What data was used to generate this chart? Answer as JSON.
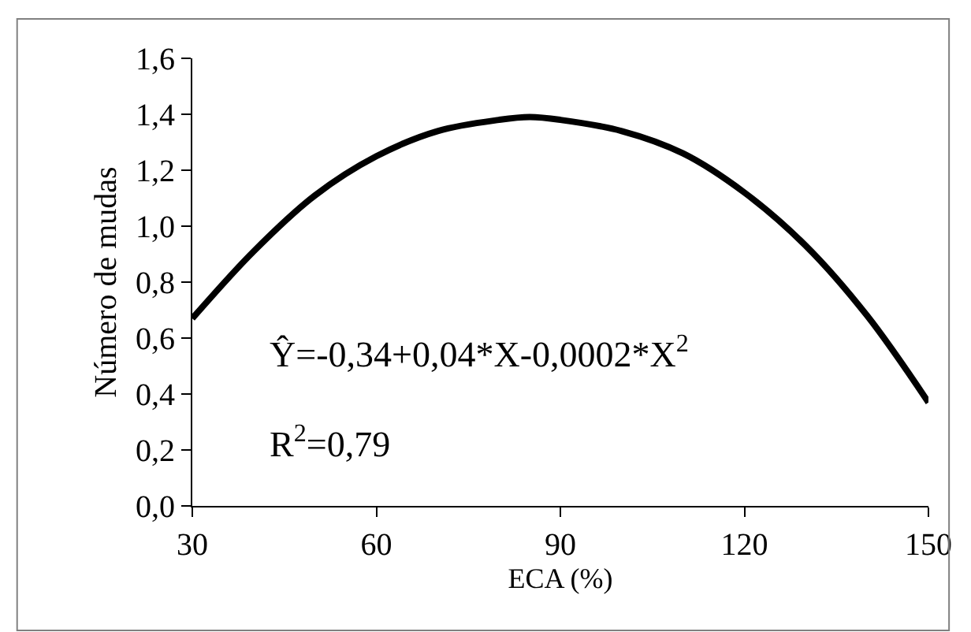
{
  "chart_data": {
    "type": "line",
    "xlabel": "ECA (%)",
    "ylabel": "Número de mudas",
    "x": [
      30,
      40,
      50,
      60,
      70,
      80,
      85,
      90,
      100,
      110,
      120,
      130,
      140,
      150
    ],
    "series": [
      {
        "color": "#000000",
        "values": [
          0.67,
          0.91,
          1.11,
          1.25,
          1.34,
          1.38,
          1.39,
          1.38,
          1.34,
          1.26,
          1.12,
          0.93,
          0.68,
          0.37
        ]
      }
    ],
    "xlim": [
      30,
      150
    ],
    "xticks": [
      30,
      60,
      90,
      120,
      150
    ],
    "ylim": [
      0,
      1.6
    ],
    "yticks": [
      {
        "value": 0,
        "label": "0,0"
      },
      {
        "value": 0.2,
        "label": "0,2"
      },
      {
        "value": 0.4,
        "label": "0,4"
      },
      {
        "value": 0.6,
        "label": "0,6"
      },
      {
        "value": 0.8,
        "label": "0,8"
      },
      {
        "value": 1.0,
        "label": "1,0"
      },
      {
        "value": 1.2,
        "label": "1,2"
      },
      {
        "value": 1.4,
        "label": "1,4"
      },
      {
        "value": 1.6,
        "label": "1,6"
      }
    ],
    "annotations": [
      "Ŷ=-0,34+0,04*X-0,0002*X$^{2}$",
      "R$^{2}$=0,79"
    ],
    "legend": false,
    "marker": "none",
    "line_style": "solid"
  }
}
